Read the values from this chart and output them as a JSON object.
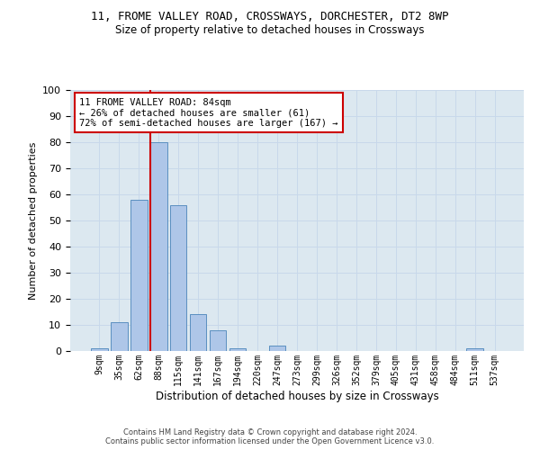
{
  "title1": "11, FROME VALLEY ROAD, CROSSWAYS, DORCHESTER, DT2 8WP",
  "title2": "Size of property relative to detached houses in Crossways",
  "xlabel": "Distribution of detached houses by size in Crossways",
  "ylabel": "Number of detached properties",
  "bin_labels": [
    "9sqm",
    "35sqm",
    "62sqm",
    "88sqm",
    "115sqm",
    "141sqm",
    "167sqm",
    "194sqm",
    "220sqm",
    "247sqm",
    "273sqm",
    "299sqm",
    "326sqm",
    "352sqm",
    "379sqm",
    "405sqm",
    "431sqm",
    "458sqm",
    "484sqm",
    "511sqm",
    "537sqm"
  ],
  "bar_values": [
    1,
    11,
    58,
    80,
    56,
    14,
    8,
    1,
    0,
    2,
    0,
    0,
    0,
    0,
    0,
    0,
    0,
    0,
    0,
    1,
    0
  ],
  "bar_color": "#aec6e8",
  "bar_edge_color": "#5a8fc0",
  "vline_color": "#cc0000",
  "annotation_line1": "11 FROME VALLEY ROAD: 84sqm",
  "annotation_line2": "← 26% of detached houses are smaller (61)",
  "annotation_line3": "72% of semi-detached houses are larger (167) →",
  "annotation_box_color": "#ffffff",
  "annotation_box_edge": "#cc0000",
  "ylim": [
    0,
    100
  ],
  "yticks": [
    0,
    10,
    20,
    30,
    40,
    50,
    60,
    70,
    80,
    90,
    100
  ],
  "grid_color": "#c8d8ea",
  "background_color": "#dce8f0",
  "footer1": "Contains HM Land Registry data © Crown copyright and database right 2024.",
  "footer2": "Contains public sector information licensed under the Open Government Licence v3.0."
}
